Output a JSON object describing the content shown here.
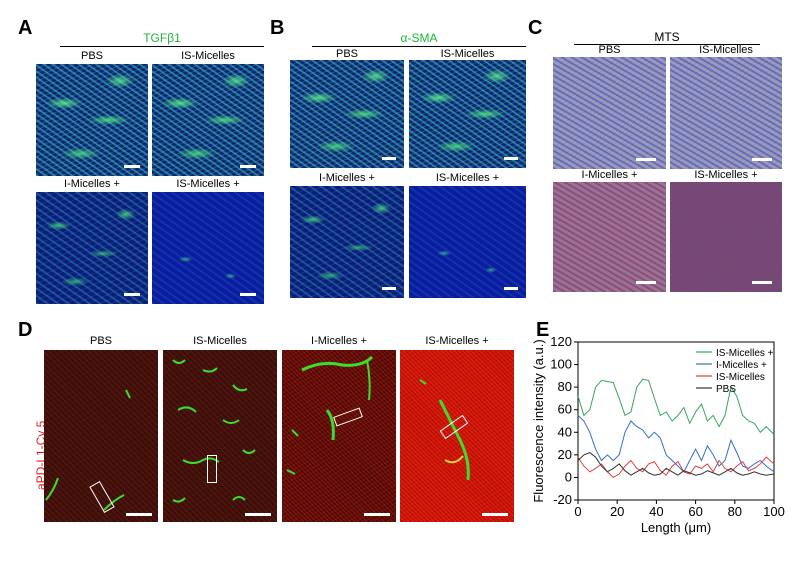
{
  "panels": {
    "A": {
      "letter": "A",
      "title": "TGFβ1",
      "subs": [
        "PBS",
        "IS-Micelles",
        "I-Micelles +",
        "IS-Micelles +"
      ]
    },
    "B": {
      "letter": "B",
      "title": "α-SMA",
      "subs": [
        "PBS",
        "IS-Micelles",
        "I-Micelles +",
        "IS-Micelles +"
      ]
    },
    "C": {
      "letter": "C",
      "title": "MTS",
      "subs": [
        "PBS",
        "IS-Micelles",
        "I-Micelles +",
        "IS-Micelles +"
      ]
    },
    "D": {
      "letter": "D",
      "ylabel": "aPD-L1-Cy 5",
      "subs": [
        "PBS",
        "IS-Micelles",
        "I-Micelles +",
        "IS-Micelles +"
      ]
    },
    "E": {
      "letter": "E"
    }
  },
  "colors": {
    "tgf_title": "#1fb33a",
    "sma_title": "#1fb33a",
    "cy5_label": "#e0201c",
    "series_is_plus": "#3aa55a",
    "series_i_plus": "#2f6fd0",
    "series_is": "#e04040",
    "series_pbs": "#333333"
  },
  "chart_data": {
    "type": "line",
    "xlabel": "Length (μm)",
    "ylabel": "Fluorescence intensity (a.u.)",
    "xlim": [
      0,
      100
    ],
    "ylim": [
      -20,
      120
    ],
    "xticks": [
      0,
      20,
      40,
      60,
      80,
      100
    ],
    "yticks": [
      -20,
      0,
      20,
      40,
      60,
      80,
      100,
      120
    ],
    "legend_position": "top-right",
    "grid": false,
    "series": [
      {
        "name": "IS-Micelles +",
        "color": "#3aa55a",
        "x": [
          0,
          3,
          6,
          9,
          12,
          15,
          18,
          21,
          24,
          27,
          30,
          33,
          36,
          39,
          42,
          45,
          48,
          51,
          54,
          57,
          60,
          63,
          66,
          69,
          72,
          75,
          78,
          81,
          84,
          87,
          90,
          93,
          96,
          100
        ],
        "y": [
          72,
          55,
          60,
          80,
          86,
          85,
          84,
          70,
          55,
          58,
          80,
          87,
          86,
          70,
          55,
          58,
          50,
          55,
          62,
          48,
          58,
          65,
          50,
          55,
          45,
          55,
          80,
          72,
          55,
          50,
          48,
          40,
          45,
          38
        ]
      },
      {
        "name": "I-Micelles +",
        "color": "#2f6fd0",
        "x": [
          0,
          3,
          6,
          9,
          12,
          15,
          18,
          21,
          24,
          27,
          30,
          33,
          36,
          39,
          42,
          45,
          48,
          51,
          54,
          57,
          60,
          63,
          66,
          69,
          72,
          75,
          78,
          81,
          84,
          87,
          90,
          93,
          96,
          100
        ],
        "y": [
          55,
          50,
          40,
          25,
          15,
          20,
          15,
          20,
          40,
          50,
          45,
          42,
          35,
          40,
          35,
          20,
          15,
          10,
          5,
          15,
          25,
          15,
          28,
          20,
          10,
          15,
          33,
          22,
          10,
          8,
          12,
          15,
          10,
          5
        ]
      },
      {
        "name": "IS-Micelles",
        "color": "#e04040",
        "x": [
          0,
          3,
          6,
          9,
          12,
          15,
          18,
          21,
          24,
          27,
          30,
          33,
          36,
          39,
          42,
          45,
          48,
          51,
          54,
          57,
          60,
          63,
          66,
          69,
          72,
          75,
          78,
          81,
          84,
          87,
          90,
          93,
          96,
          100
        ],
        "y": [
          18,
          10,
          5,
          8,
          12,
          5,
          0,
          3,
          10,
          15,
          8,
          5,
          12,
          14,
          6,
          2,
          10,
          14,
          5,
          3,
          10,
          8,
          12,
          5,
          15,
          8,
          5,
          10,
          14,
          6,
          8,
          12,
          18,
          12
        ]
      },
      {
        "name": "PBS",
        "color": "#333333",
        "x": [
          0,
          3,
          6,
          9,
          12,
          15,
          18,
          21,
          24,
          27,
          30,
          33,
          36,
          39,
          42,
          45,
          48,
          51,
          54,
          57,
          60,
          63,
          66,
          69,
          72,
          75,
          78,
          81,
          84,
          87,
          90,
          93,
          96,
          100
        ],
        "y": [
          15,
          20,
          22,
          18,
          10,
          5,
          8,
          12,
          6,
          2,
          5,
          8,
          4,
          2,
          3,
          8,
          5,
          2,
          6,
          4,
          2,
          3,
          6,
          4,
          2,
          5,
          8,
          4,
          2,
          3,
          5,
          3,
          2,
          3
        ]
      }
    ]
  }
}
